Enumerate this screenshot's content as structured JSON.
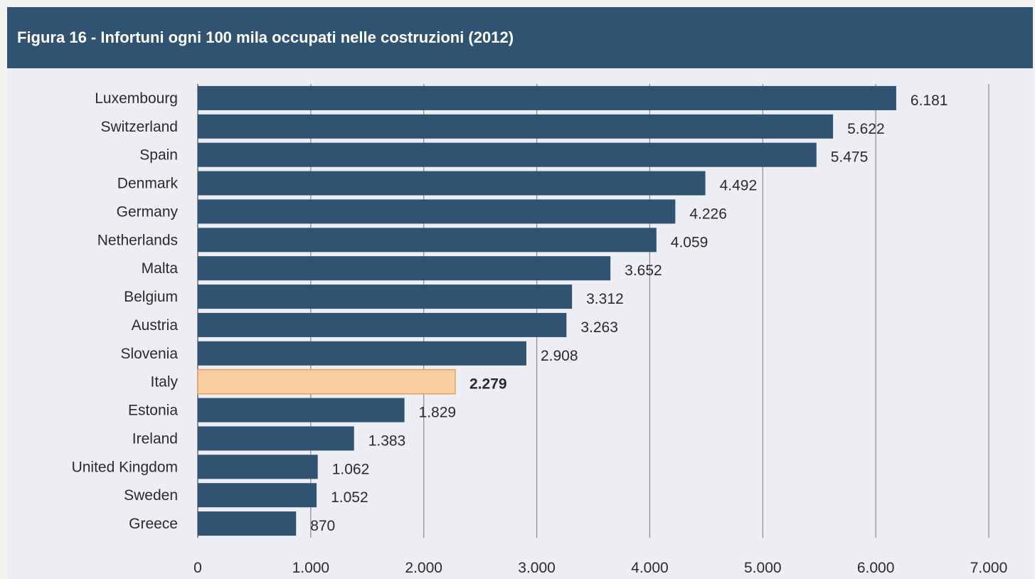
{
  "title": "Figura 16 - Infortuni ogni 100 mila occupati nelle costruzioni (2012)",
  "colors": {
    "header": "#2f5370",
    "bar": "#2f5370",
    "highlight_bar": "#f8cfa0",
    "highlight_border": "#e8a060",
    "grid": "#8a8a8a",
    "background": "#eceef3"
  },
  "chart_data": {
    "type": "bar",
    "orientation": "horizontal",
    "title": "Figura 16 - Infortuni ogni 100 mila occupati nelle costruzioni (2012)",
    "xlabel": "",
    "ylabel": "",
    "xlim": [
      0,
      7000
    ],
    "grid": true,
    "legend": "none",
    "highlight": "Italy",
    "categories": [
      "Luxembourg",
      "Switzerland",
      "Spain",
      "Denmark",
      "Germany",
      "Netherlands",
      "Malta",
      "Belgium",
      "Austria",
      "Slovenia",
      "Italy",
      "Estonia",
      "Ireland",
      "United Kingdom",
      "Sweden",
      "Greece"
    ],
    "values": [
      6181,
      5622,
      5475,
      4492,
      4226,
      4059,
      3652,
      3312,
      3263,
      2908,
      2279,
      1829,
      1383,
      1062,
      1052,
      870
    ],
    "value_labels": [
      "6.181",
      "5.622",
      "5.475",
      "4.492",
      "4.226",
      "4.059",
      "3.652",
      "3.312",
      "3.263",
      "2.908",
      "2.279",
      "1.829",
      "1.383",
      "1.062",
      "1.052",
      "870"
    ],
    "ticks": [
      0,
      1000,
      2000,
      3000,
      4000,
      5000,
      6000,
      7000
    ],
    "tick_labels": [
      "0",
      "1.000",
      "2.000",
      "3.000",
      "4.000",
      "5.000",
      "6.000",
      "7.000"
    ]
  }
}
